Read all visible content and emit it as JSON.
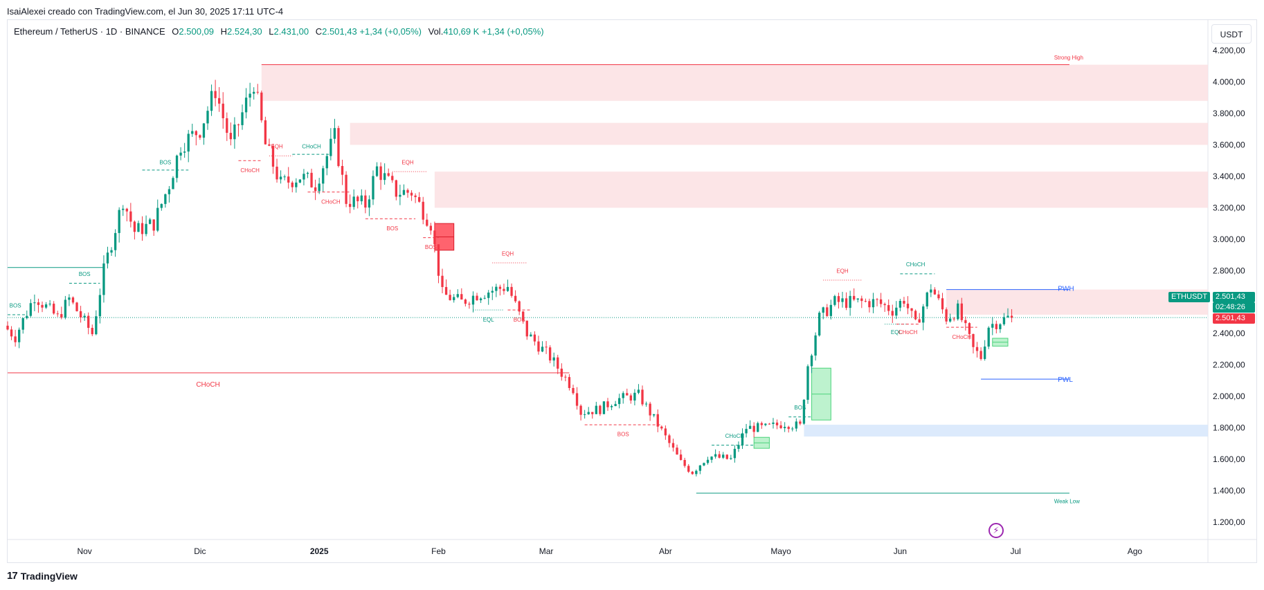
{
  "caption": "IsaiAlexei creado con TradingView.com, el Jun 30, 2025 17:11 UTC-4",
  "legend": {
    "symbol": "Ethereum / TetherUS · 1D · BINANCE",
    "o_label": "O",
    "o_val": "2.500,09",
    "h_label": "H",
    "h_val": "2.524,30",
    "l_label": "L",
    "l_val": "2.431,00",
    "c_label": "C",
    "c_val": "2.501,43",
    "change": "+1,34 (+0,05%)",
    "vol_label": "Vol.",
    "vol_val": "410,69 K",
    "vol_change": "+1,34 (+0,05%)"
  },
  "currency_button": "USDT",
  "footer_logo": "TradingView",
  "footer_mark": "17",
  "bolt_icon": "⚡",
  "price_tags": {
    "symbol": "ETHUSDT",
    "price": "2.501,43",
    "countdown": "02:48:26",
    "price_red": "2.501,43"
  },
  "colors": {
    "up": "#089981",
    "down": "#f23645",
    "supply_zone": "#fce1e3",
    "demand_zone": "#d6e6fb",
    "bull_fvg": "#b2f0c5",
    "level_blue": "#2962ff"
  },
  "chart_data": {
    "type": "candlestick",
    "symbol": "ETHUSDT",
    "timeframe": "1D",
    "y_axis": {
      "ticks": [
        1200,
        1400,
        1600,
        1800,
        2000,
        2200,
        2400,
        2600,
        2800,
        3000,
        3200,
        3400,
        3600,
        3800,
        4000,
        4200
      ],
      "tick_labels": [
        "1.200,00",
        "1.400,00",
        "1.600,00",
        "1.800,00",
        "2.000,00",
        "2.200,00",
        "2.400,00",
        "2.600,00",
        "2.800,00",
        "3.000,00",
        "3.200,00",
        "3.400,00",
        "3.600,00",
        "3.800,00",
        "4.000,00",
        "4.200,00"
      ],
      "range": [
        1090,
        4240
      ]
    },
    "x_axis": {
      "range": [
        "2024-10-12",
        "2025-08-20"
      ],
      "ticks": [
        {
          "date": "2024-11-01",
          "label": "Nov",
          "bold": false
        },
        {
          "date": "2024-12-01",
          "label": "Dic",
          "bold": false
        },
        {
          "date": "2025-01-01",
          "label": "2025",
          "bold": true
        },
        {
          "date": "2025-02-01",
          "label": "Feb",
          "bold": false
        },
        {
          "date": "2025-03-01",
          "label": "Mar",
          "bold": false
        },
        {
          "date": "2025-04-01",
          "label": "Abr",
          "bold": false
        },
        {
          "date": "2025-05-01",
          "label": "Mayo",
          "bold": false
        },
        {
          "date": "2025-06-01",
          "label": "Jun",
          "bold": false
        },
        {
          "date": "2025-07-01",
          "label": "Jul",
          "bold": false
        },
        {
          "date": "2025-08-01",
          "label": "Ago",
          "bold": false
        }
      ]
    },
    "price_anchors": [
      [
        "2024-10-12",
        2450
      ],
      [
        "2024-10-15",
        2380
      ],
      [
        "2024-10-20",
        2640
      ],
      [
        "2024-10-26",
        2500
      ],
      [
        "2024-10-29",
        2620
      ],
      [
        "2024-11-04",
        2400
      ],
      [
        "2024-11-07",
        2800
      ],
      [
        "2024-11-12",
        3250
      ],
      [
        "2024-11-15",
        3050
      ],
      [
        "2024-11-20",
        3100
      ],
      [
        "2024-11-24",
        3350
      ],
      [
        "2024-11-27",
        3600
      ],
      [
        "2024-12-02",
        3700
      ],
      [
        "2024-12-06",
        3950
      ],
      [
        "2024-12-10",
        3600
      ],
      [
        "2024-12-16",
        4000
      ],
      [
        "2024-12-19",
        3600
      ],
      [
        "2024-12-23",
        3350
      ],
      [
        "2024-12-28",
        3400
      ],
      [
        "2025-01-01",
        3350
      ],
      [
        "2025-01-06",
        3650
      ],
      [
        "2025-01-09",
        3250
      ],
      [
        "2025-01-14",
        3220
      ],
      [
        "2025-01-17",
        3450
      ],
      [
        "2025-01-22",
        3300
      ],
      [
        "2025-01-26",
        3300
      ],
      [
        "2025-01-31",
        3100
      ],
      [
        "2025-02-03",
        2650
      ],
      [
        "2025-02-08",
        2600
      ],
      [
        "2025-02-12",
        2650
      ],
      [
        "2025-02-20",
        2700
      ],
      [
        "2025-02-25",
        2400
      ],
      [
        "2025-03-03",
        2250
      ],
      [
        "2025-03-09",
        2050
      ],
      [
        "2025-03-11",
        1900
      ],
      [
        "2025-03-16",
        1920
      ],
      [
        "2025-03-20",
        1980
      ],
      [
        "2025-03-26",
        2010
      ],
      [
        "2025-03-31",
        1820
      ],
      [
        "2025-04-06",
        1580
      ],
      [
        "2025-04-09",
        1520
      ],
      [
        "2025-04-13",
        1620
      ],
      [
        "2025-04-19",
        1600
      ],
      [
        "2025-04-23",
        1800
      ],
      [
        "2025-04-28",
        1800
      ],
      [
        "2025-05-03",
        1830
      ],
      [
        "2025-05-07",
        1810
      ],
      [
        "2025-05-09",
        2200
      ],
      [
        "2025-05-12",
        2500
      ],
      [
        "2025-05-16",
        2600
      ],
      [
        "2025-05-22",
        2600
      ],
      [
        "2025-05-27",
        2600
      ],
      [
        "2025-05-31",
        2550
      ],
      [
        "2025-06-03",
        2620
      ],
      [
        "2025-06-06",
        2450
      ],
      [
        "2025-06-10",
        2700
      ],
      [
        "2025-06-14",
        2500
      ],
      [
        "2025-06-17",
        2550
      ],
      [
        "2025-06-21",
        2300
      ],
      [
        "2025-06-23",
        2250
      ],
      [
        "2025-06-25",
        2450
      ],
      [
        "2025-06-30",
        2501
      ]
    ],
    "annotations": {
      "zones": [
        {
          "kind": "supply",
          "from": "2024-12-17",
          "to": "2025-08-20",
          "top": 4110,
          "bottom": 3880
        },
        {
          "kind": "supply",
          "from": "2025-01-09",
          "to": "2025-08-20",
          "top": 3740,
          "bottom": 3600
        },
        {
          "kind": "supply",
          "from": "2025-01-31",
          "to": "2025-08-20",
          "top": 3430,
          "bottom": 3200
        },
        {
          "kind": "supply",
          "from": "2025-06-13",
          "to": "2025-08-20",
          "top": 2680,
          "bottom": 2520
        },
        {
          "kind": "demand",
          "from": "2025-05-07",
          "to": "2025-08-20",
          "top": 1820,
          "bottom": 1745
        },
        {
          "kind": "bear_block",
          "from": "2025-01-31",
          "to": "2025-02-05",
          "top": 3100,
          "bottom": 2930
        },
        {
          "kind": "bull_fvg",
          "from": "2025-05-09",
          "to": "2025-05-14",
          "top": 2180,
          "bottom": 1850
        },
        {
          "kind": "bull_fvg",
          "from": "2025-04-24",
          "to": "2025-04-28",
          "top": 1740,
          "bottom": 1670
        },
        {
          "kind": "bull_fvg",
          "from": "2025-06-25",
          "to": "2025-06-29",
          "top": 2370,
          "bottom": 2320
        }
      ],
      "levels": [
        {
          "label": "Strong High",
          "price": 4110,
          "from": "2024-12-17",
          "to": "2025-07-15",
          "color": "#f23645",
          "text_date": "2025-07-11",
          "text_price": 4160,
          "size": 8
        },
        {
          "label": "Weak Low",
          "price": 1385,
          "from": "2025-04-09",
          "to": "2025-07-15",
          "color": "#089981",
          "text_date": "2025-07-11",
          "text_price": 1338,
          "size": 8
        },
        {
          "label": "PWH",
          "price": 2680,
          "from": "2025-06-13",
          "to": "2025-07-15",
          "color": "#2962ff",
          "text_date": "2025-07-12",
          "text_price": 2690,
          "size": 10
        },
        {
          "label": "PWL",
          "price": 2110,
          "from": "2025-06-22",
          "to": "2025-07-15",
          "color": "#2962ff",
          "text_date": "2025-07-12",
          "text_price": 2110,
          "size": 10
        },
        {
          "label": "CHoCH",
          "price": 2150,
          "from": "2024-10-12",
          "to": "2025-03-07",
          "color": "#f23645",
          "text_date": "2024-11-30",
          "text_price": 2080,
          "size": 10
        },
        {
          "label": "",
          "price": 2820,
          "from": "2024-10-12",
          "to": "2024-11-06",
          "color": "#089981",
          "text_date": "2024-10-12",
          "text_price": 2820,
          "size": 10
        }
      ],
      "structure": [
        {
          "label": "BOS",
          "price": 2520,
          "from": "2024-10-12",
          "to": "2024-10-17",
          "color": "#089981",
          "style": "dash"
        },
        {
          "label": "BOS",
          "price": 2720,
          "from": "2024-10-28",
          "to": "2024-11-05",
          "color": "#089981",
          "style": "dash"
        },
        {
          "label": "BOS",
          "price": 3440,
          "from": "2024-11-16",
          "to": "2024-11-28",
          "color": "#089981",
          "style": "dash"
        },
        {
          "label": "CHoCH",
          "price": 3500,
          "from": "2024-12-11",
          "to": "2024-12-17",
          "color": "#f23645",
          "style": "dash"
        },
        {
          "label": "EQH",
          "price": 3530,
          "from": "2024-12-19",
          "to": "2024-12-25",
          "color": "#f23645",
          "style": "dot"
        },
        {
          "label": "CHoCH",
          "price": 3540,
          "from": "2024-12-25",
          "to": "2025-01-04",
          "color": "#089981",
          "style": "dash"
        },
        {
          "label": "CHoCH",
          "price": 3300,
          "from": "2024-12-29",
          "to": "2025-01-09",
          "color": "#f23645",
          "style": "dash"
        },
        {
          "label": "EQH",
          "price": 3430,
          "from": "2025-01-20",
          "to": "2025-01-29",
          "color": "#f23645",
          "style": "dot"
        },
        {
          "label": "BOS",
          "price": 3130,
          "from": "2025-01-13",
          "to": "2025-01-26",
          "color": "#f23645",
          "style": "dash"
        },
        {
          "label": "BOS",
          "price": 3010,
          "from": "2025-01-28",
          "to": "2025-02-01",
          "color": "#f23645",
          "style": "dash"
        },
        {
          "label": "EQH",
          "price": 2850,
          "from": "2025-02-15",
          "to": "2025-02-24",
          "color": "#f23645",
          "style": "dot"
        },
        {
          "label": "EQL",
          "price": 2550,
          "from": "2025-02-10",
          "to": "2025-02-18",
          "color": "#089981",
          "style": "dot"
        },
        {
          "label": "BOS",
          "price": 2550,
          "from": "2025-02-19",
          "to": "2025-02-25",
          "color": "#f23645",
          "style": "dash"
        },
        {
          "label": "BOS",
          "price": 1820,
          "from": "2025-03-11",
          "to": "2025-03-31",
          "color": "#f23645",
          "style": "dash"
        },
        {
          "label": "CHoCH",
          "price": 1690,
          "from": "2025-04-13",
          "to": "2025-04-24",
          "color": "#089981",
          "style": "dash"
        },
        {
          "label": "BOS",
          "price": 1870,
          "from": "2025-05-03",
          "to": "2025-05-09",
          "color": "#089981",
          "style": "dash"
        },
        {
          "label": "EQH",
          "price": 2740,
          "from": "2025-05-12",
          "to": "2025-05-22",
          "color": "#f23645",
          "style": "dot"
        },
        {
          "label": "EQL",
          "price": 2460,
          "from": "2025-05-28",
          "to": "2025-06-03",
          "color": "#089981",
          "style": "dot"
        },
        {
          "label": "CHoCH",
          "price": 2460,
          "from": "2025-05-31",
          "to": "2025-06-06",
          "color": "#f23645",
          "style": "dash"
        },
        {
          "label": "CHoCH",
          "price": 2780,
          "from": "2025-06-01",
          "to": "2025-06-10",
          "color": "#089981",
          "style": "dash"
        },
        {
          "label": "CHoCH",
          "price": 2440,
          "from": "2025-06-13",
          "to": "2025-06-21",
          "color": "#f23645",
          "style": "dash"
        }
      ],
      "labels": [
        {
          "text": "BOS",
          "date": "2024-10-14",
          "price": 2580,
          "color": "#089981"
        },
        {
          "text": "BOS",
          "date": "2024-11-01",
          "price": 2780,
          "color": "#089981"
        },
        {
          "text": "BOS",
          "date": "2024-11-22",
          "price": 3490,
          "color": "#089981"
        },
        {
          "text": "CHoCH",
          "date": "2024-12-14",
          "price": 3440,
          "color": "#f23645"
        },
        {
          "text": "EQH",
          "date": "2024-12-21",
          "price": 3590,
          "color": "#f23645"
        },
        {
          "text": "CHoCH",
          "date": "2024-12-30",
          "price": 3590,
          "color": "#089981"
        },
        {
          "text": "CHoCH",
          "date": "2025-01-04",
          "price": 3240,
          "color": "#f23645"
        },
        {
          "text": "EQH",
          "date": "2025-01-24",
          "price": 3490,
          "color": "#f23645"
        },
        {
          "text": "BOS",
          "date": "2025-01-20",
          "price": 3070,
          "color": "#f23645"
        },
        {
          "text": "BOS",
          "date": "2025-01-30",
          "price": 2950,
          "color": "#f23645"
        },
        {
          "text": "EQH",
          "date": "2025-02-19",
          "price": 2910,
          "color": "#f23645"
        },
        {
          "text": "EQL",
          "date": "2025-02-14",
          "price": 2490,
          "color": "#089981"
        },
        {
          "text": "BOS",
          "date": "2025-02-22",
          "price": 2490,
          "color": "#f23645"
        },
        {
          "text": "BOS",
          "date": "2025-03-21",
          "price": 1760,
          "color": "#f23645"
        },
        {
          "text": "CHoCH",
          "date": "2025-04-19",
          "price": 1750,
          "color": "#089981"
        },
        {
          "text": "BOS",
          "date": "2025-05-06",
          "price": 1930,
          "color": "#089981"
        },
        {
          "text": "EQH",
          "date": "2025-05-17",
          "price": 2800,
          "color": "#f23645"
        },
        {
          "text": "EQL",
          "date": "2025-05-31",
          "price": 2410,
          "color": "#089981"
        },
        {
          "text": "CHoCH",
          "date": "2025-06-03",
          "price": 2410,
          "color": "#f23645"
        },
        {
          "text": "CHoCH",
          "date": "2025-06-05",
          "price": 2840,
          "color": "#089981"
        },
        {
          "text": "CHoCH",
          "date": "2025-06-17",
          "price": 2380,
          "color": "#f23645"
        }
      ],
      "current_price": 2501.43
    }
  }
}
